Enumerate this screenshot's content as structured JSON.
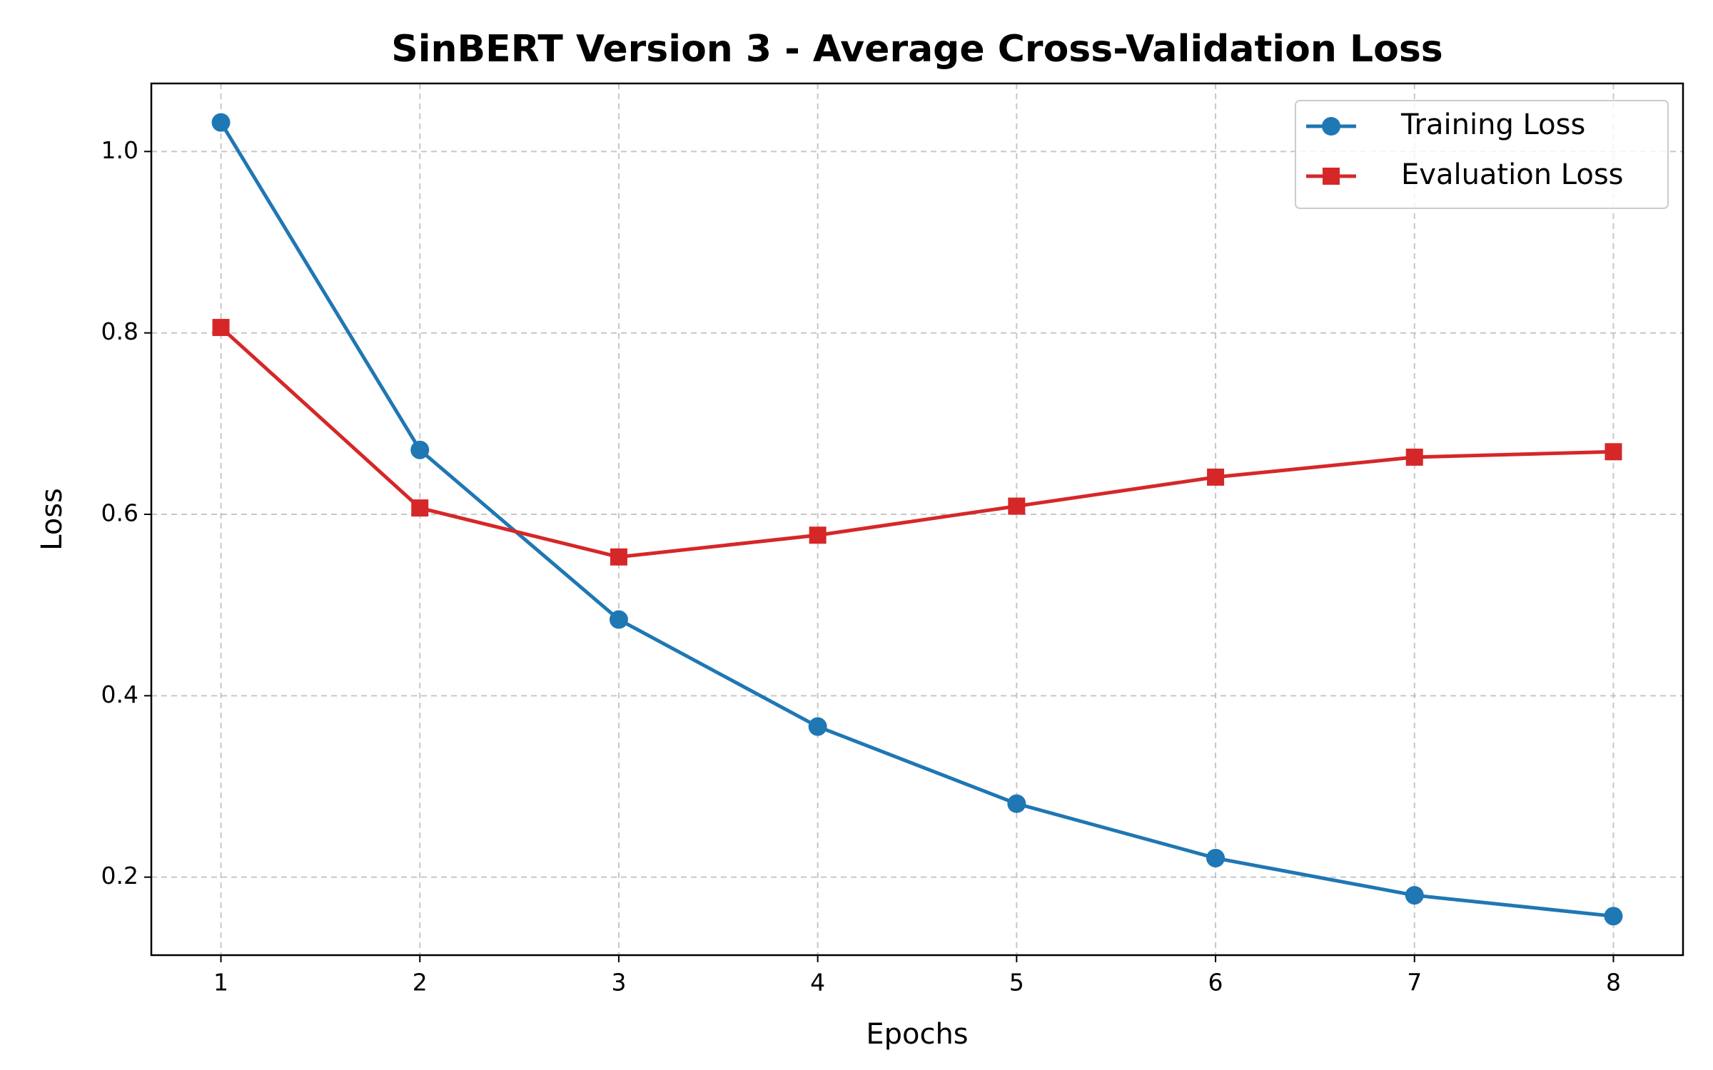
{
  "chart_data": {
    "type": "line",
    "title": "SinBERT Version 3 - Average Cross-Validation Loss",
    "xlabel": "Epochs",
    "ylabel": "Loss",
    "x": [
      1,
      2,
      3,
      4,
      5,
      6,
      7,
      8
    ],
    "series": [
      {
        "name": "Training Loss",
        "color": "#1f77b4",
        "marker": "o",
        "values": [
          1.032,
          0.671,
          0.484,
          0.366,
          0.281,
          0.221,
          0.18,
          0.157
        ]
      },
      {
        "name": "Evaluation Loss",
        "color": "#d62728",
        "marker": "s",
        "values": [
          0.806,
          0.607,
          0.553,
          0.577,
          0.609,
          0.641,
          0.663,
          0.669
        ]
      }
    ],
    "xlim": [
      0.65,
      8.35
    ],
    "ylim": [
      0.114,
      1.075
    ],
    "xticks": [
      1,
      2,
      3,
      4,
      5,
      6,
      7,
      8
    ],
    "yticks": [
      0.2,
      0.4,
      0.6,
      0.8,
      {
        "value": 1,
        "label": "1.0"
      }
    ],
    "grid": true,
    "legend": "upper right"
  }
}
